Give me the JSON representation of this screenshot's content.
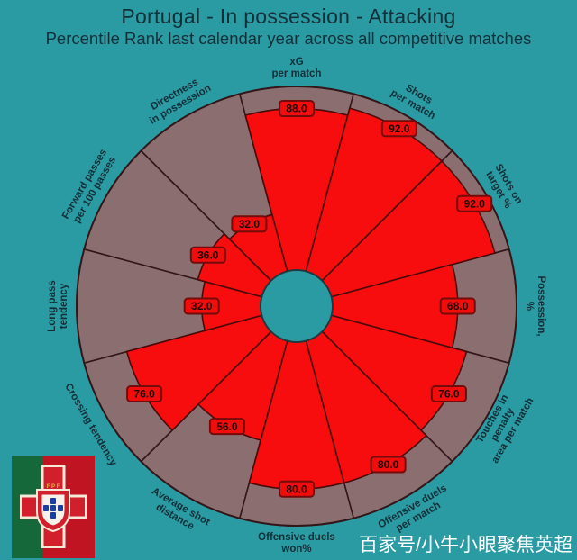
{
  "header": {
    "title": "Portugal - In possession - Attacking",
    "subtitle": "Percentile Rank last calendar year across all competitive matches"
  },
  "chart_data": {
    "type": "bar",
    "variant": "radial-pizza-percentile",
    "title": "Portugal - In possession - Attacking",
    "subtitle": "Percentile Rank last calendar year across all competitive matches",
    "ylim": [
      0,
      100
    ],
    "legend_position": "none",
    "grid": false,
    "categories": [
      "xG per match",
      "Shots per match",
      "Shots on target %",
      "Possession, %",
      "Touches in penalty area per match",
      "Offensive duels per match",
      "Offensive duels won%",
      "Average shot distance",
      "Crossing tendency",
      "Long pass tendency",
      "Forward passes per 100 passes",
      "Directness in possession"
    ],
    "values": [
      88.0,
      92.0,
      92.0,
      68.0,
      76.0,
      80.0,
      80.0,
      56.0,
      76.0,
      32.0,
      36.0,
      32.0
    ],
    "value_labels": [
      "88.0",
      "92.0",
      "92.0",
      "68.0",
      "76.0",
      "80.0",
      "80.0",
      "56.0",
      "76.0",
      "32.0",
      "36.0",
      "32.0"
    ],
    "label_lines": [
      [
        "xG",
        "per match"
      ],
      [
        "Shots",
        "per match"
      ],
      [
        "Shots on",
        "target %"
      ],
      [
        "Possession, %"
      ],
      [
        "Touches in penalty",
        "area per match"
      ],
      [
        "Offensive duels",
        "per match"
      ],
      [
        "Offensive duels",
        "won%"
      ],
      [
        "Average shot",
        "distance"
      ],
      [
        "Crossing tendency"
      ],
      [
        "Long pass",
        "tendency"
      ],
      [
        "Forward passes",
        "per 100 passes"
      ],
      [
        "Directness",
        "in possession"
      ]
    ]
  },
  "colors": {
    "background": "#2b9ba3",
    "slice_background": "#8b6f70",
    "slice_fill": "#f70d0d",
    "slice_edge": "#33161a",
    "red_edge": "#4a0a0a",
    "hole_edge": "#20393e",
    "value_box_fill": "#f20d0d",
    "value_box_border": "#740b0b",
    "value_text": "#1f0606",
    "text": "#132f38",
    "watermark_text": "#ffffff",
    "flag_green": "#15683a",
    "flag_red": "#c01423",
    "crest_red": "#d11f2c",
    "crest_cream": "#f2e9d8",
    "crest_blue": "#1a3e9e",
    "crest_gold": "#e3b93f"
  },
  "logo": {
    "name": "Portugal FPF crest",
    "letters": "F P F"
  },
  "footer": {
    "watermark": "百家号/小牛小眼聚焦英超"
  }
}
